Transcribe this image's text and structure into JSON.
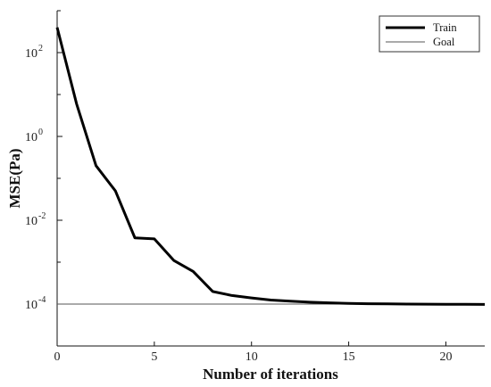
{
  "chart_data": {
    "type": "line",
    "title": "",
    "xlabel": "Number of iterations",
    "ylabel": "MSE(Pa)",
    "xlim": [
      0,
      22
    ],
    "ylim": [
      1e-05,
      1000
    ],
    "yscale": "log",
    "x_ticks": [
      0,
      5,
      10,
      15,
      20
    ],
    "y_ticks": [
      0.0001,
      0.01,
      1,
      100
    ],
    "grid": false,
    "legend_position": "top-right",
    "series": [
      {
        "name": "Train",
        "style": "thick-solid",
        "color": "#000000",
        "x": [
          0,
          1,
          2,
          3,
          4,
          5,
          6,
          7,
          8,
          9,
          10,
          11,
          12,
          13,
          14,
          15,
          16,
          17,
          18,
          19,
          20,
          21,
          22
        ],
        "y": [
          400,
          6,
          0.2,
          0.05,
          0.0038,
          0.0036,
          0.0011,
          0.0006,
          0.0002,
          0.00016,
          0.00014,
          0.000125,
          0.000117,
          0.000111,
          0.000107,
          0.000104,
          0.000102,
          0.000101,
          0.0001,
          9.95e-05,
          9.9e-05,
          9.85e-05,
          9.8e-05
        ]
      },
      {
        "name": "Goal",
        "style": "thin-solid",
        "color": "#555555",
        "x": [
          0,
          22
        ],
        "y": [
          0.0001,
          0.0001
        ]
      }
    ]
  },
  "y_tick_text": [
    {
      "base": "10",
      "exp": "-4"
    },
    {
      "base": "10",
      "exp": "-2"
    },
    {
      "base": "10",
      "exp": "0"
    },
    {
      "base": "10",
      "exp": "2"
    }
  ]
}
